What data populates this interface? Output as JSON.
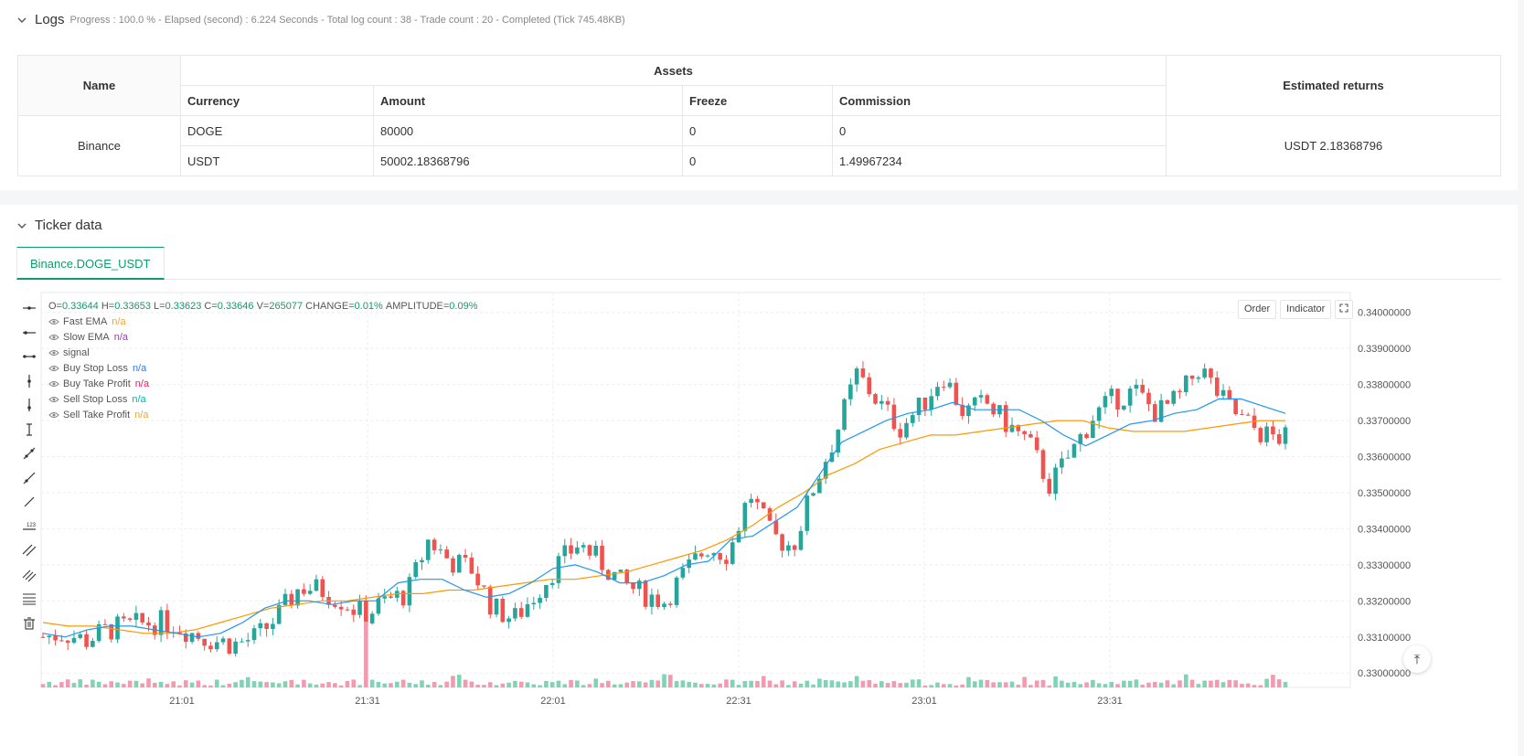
{
  "logs": {
    "title": "Logs",
    "status": "Progress : 100.0 % - Elapsed (second) : 6.224  Seconds - Total log count : 38 - Trade count : 20 - Completed (Tick 745.48KB)",
    "table": {
      "headers": {
        "name": "Name",
        "assets": "Assets",
        "returns": "Estimated returns",
        "currency": "Currency",
        "amount": "Amount",
        "freeze": "Freeze",
        "commission": "Commission"
      },
      "exchange": "Binance",
      "rows": [
        {
          "currency": "DOGE",
          "amount": "80000",
          "freeze": "0",
          "commission": "0"
        },
        {
          "currency": "USDT",
          "amount": "50002.18368796",
          "freeze": "0",
          "commission": "1.49967234"
        }
      ],
      "estimated_returns": "USDT 2.18368796"
    }
  },
  "ticker": {
    "title": "Ticker data",
    "tab": "Binance.DOGE_USDT",
    "ohlc": {
      "o_label": "O=",
      "o": "0.33644",
      "h_label": "H=",
      "h": "0.33653",
      "l_label": "L=",
      "l": "0.33623",
      "c_label": "C=",
      "c": "0.33646",
      "v_label": "V=",
      "v": "265077",
      "change_label": "CHANGE=",
      "change": "0.01%",
      "amp_label": "AMPLITUDE=",
      "amp": "0.09%"
    },
    "legend": [
      {
        "name": "Fast EMA",
        "value": "n/a",
        "color": "#f5a623"
      },
      {
        "name": "Slow EMA",
        "value": "n/a",
        "color": "#8e44ad"
      },
      {
        "name": "signal",
        "value": "",
        "color": "#555555"
      },
      {
        "name": "Buy Stop Loss",
        "value": "n/a",
        "color": "#2979ff"
      },
      {
        "name": "Buy Take Profit",
        "value": "n/a",
        "color": "#e91e63"
      },
      {
        "name": "Sell Stop Loss",
        "value": "n/a",
        "color": "#00b8a9"
      },
      {
        "name": "Sell Take Profit",
        "value": "n/a",
        "color": "#f5a623"
      }
    ],
    "buttons": {
      "order": "Order",
      "indicator": "Indicator"
    },
    "toolbar_icons": [
      "horizontal-line-icon",
      "horizontal-ray-icon",
      "extended-line-icon",
      "vertical-line-icon",
      "vertical-segment-icon",
      "vertical-ray-icon",
      "trend-line-icon",
      "ray-line-icon",
      "segment-icon",
      "price-label-icon",
      "parallel-channel-icon",
      "pitchfork-icon",
      "fib-lines-icon",
      "trash-icon"
    ]
  },
  "chart_data": {
    "type": "candlestick",
    "symbol": "Binance.DOGE_USDT",
    "x_ticks": [
      "21:01",
      "21:31",
      "22:01",
      "22:31",
      "23:01",
      "23:31"
    ],
    "y_ticks": [
      "0.34000000",
      "0.33900000",
      "0.33800000",
      "0.33700000",
      "0.33600000",
      "0.33500000",
      "0.33400000",
      "0.33300000",
      "0.33200000",
      "0.33100000",
      "0.33000000"
    ],
    "ylim": [
      0.3296,
      0.3405
    ],
    "grid": true,
    "up_color": "#26a69a",
    "down_color": "#ef5350",
    "series": [
      {
        "name": "Fast EMA",
        "color": "#2196f3"
      },
      {
        "name": "Slow EMA",
        "color": "#ff9800"
      }
    ],
    "price_path": [
      0.331,
      0.3311,
      0.3309,
      0.3312,
      0.3313,
      0.3314,
      0.3314,
      0.3311,
      0.3309,
      0.3308,
      0.331,
      0.3316,
      0.3324,
      0.3323,
      0.332,
      0.3316,
      0.332,
      0.3322,
      0.3337,
      0.3331,
      0.3329,
      0.3318,
      0.3315,
      0.3322,
      0.333,
      0.3336,
      0.3331,
      0.3325,
      0.3322,
      0.332,
      0.3328,
      0.3335,
      0.3333,
      0.335,
      0.3338,
      0.3335,
      0.3352,
      0.3366,
      0.3383,
      0.3375,
      0.3368,
      0.3374,
      0.3383,
      0.3372,
      0.3375,
      0.3369,
      0.3364,
      0.3352,
      0.3361,
      0.3371,
      0.3376,
      0.3378,
      0.3372,
      0.3376,
      0.3385,
      0.3376,
      0.337,
      0.3366,
      0.3365
    ],
    "fast_ema": [
      0.3311,
      0.331,
      0.3312,
      0.3313,
      0.3313,
      0.3312,
      0.3311,
      0.331,
      0.3311,
      0.3314,
      0.3318,
      0.332,
      0.332,
      0.3319,
      0.332,
      0.332,
      0.3325,
      0.3326,
      0.3326,
      0.3323,
      0.3321,
      0.3322,
      0.3325,
      0.3329,
      0.333,
      0.3328,
      0.3325,
      0.3325,
      0.3327,
      0.333,
      0.3331,
      0.3337,
      0.3338,
      0.3342,
      0.3346,
      0.3355,
      0.3364,
      0.3367,
      0.337,
      0.3372,
      0.3373,
      0.3375,
      0.3373,
      0.3373,
      0.3373,
      0.337,
      0.3366,
      0.3363,
      0.3366,
      0.3369,
      0.337,
      0.3372,
      0.3373,
      0.3376,
      0.3376,
      0.3374,
      0.3372
    ],
    "slow_ema": [
      0.3314,
      0.3313,
      0.3313,
      0.3312,
      0.3311,
      0.3311,
      0.3312,
      0.3314,
      0.3316,
      0.3318,
      0.3319,
      0.332,
      0.332,
      0.3321,
      0.3322,
      0.3322,
      0.3323,
      0.3323,
      0.3324,
      0.3325,
      0.3326,
      0.3326,
      0.3327,
      0.3328,
      0.333,
      0.3332,
      0.3334,
      0.3337,
      0.3341,
      0.3346,
      0.335,
      0.3355,
      0.3358,
      0.3362,
      0.3364,
      0.3366,
      0.3366,
      0.3367,
      0.3368,
      0.3369,
      0.337,
      0.337,
      0.3368,
      0.3367,
      0.3367,
      0.3367,
      0.3368,
      0.3369,
      0.337,
      0.337
    ]
  }
}
